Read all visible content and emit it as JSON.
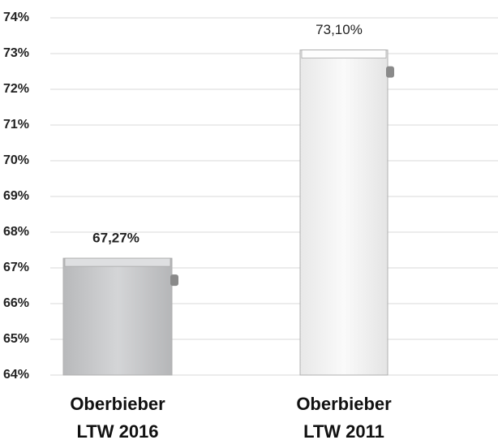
{
  "chart_data": {
    "type": "bar",
    "categories": [
      "Oberbieber LTW 2016",
      "Oberbieber LTW 2011"
    ],
    "values": [
      67.27,
      73.1
    ],
    "value_labels": [
      "67,27%",
      "73,10%"
    ],
    "colors": [
      "#c9cacc",
      "#f4f4f4"
    ],
    "ylim": [
      64,
      74
    ],
    "yticks": [
      {
        "value": 64,
        "label": "64%"
      },
      {
        "value": 65,
        "label": "65%"
      },
      {
        "value": 66,
        "label": "66%"
      },
      {
        "value": 67,
        "label": "67%"
      },
      {
        "value": 68,
        "label": "68%"
      },
      {
        "value": 69,
        "label": "69%"
      },
      {
        "value": 70,
        "label": "70%"
      },
      {
        "value": 71,
        "label": "71%"
      },
      {
        "value": 72,
        "label": "72%"
      },
      {
        "value": 73,
        "label": "73%"
      },
      {
        "value": 74,
        "label": "74%"
      }
    ],
    "grid": true
  }
}
